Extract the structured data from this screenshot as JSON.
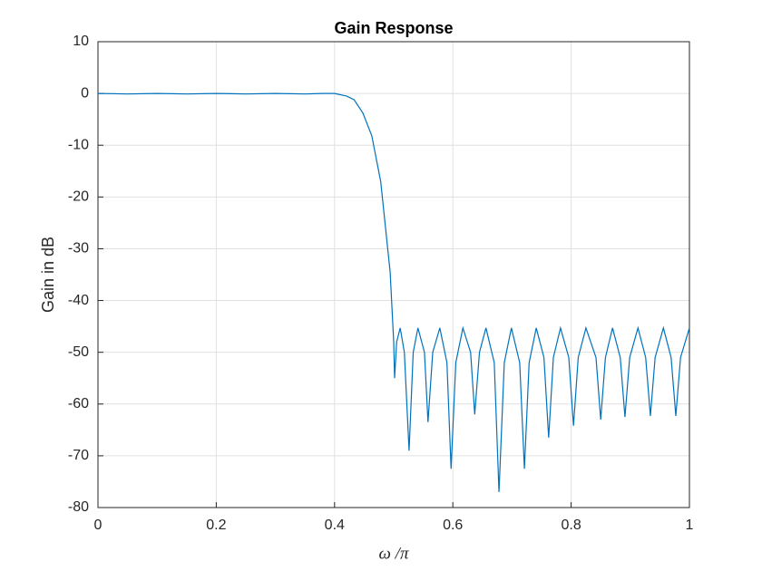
{
  "chart_data": {
    "type": "line",
    "title": "Gain Response",
    "xlabel": "ω /π",
    "ylabel": "Gain in dB",
    "x": [
      0,
      0.05,
      0.1,
      0.15,
      0.2,
      0.25,
      0.3,
      0.35,
      0.38,
      0.4,
      0.42,
      0.433,
      0.448,
      0.463,
      0.478,
      0.494,
      0.5,
      0.5015,
      0.505,
      0.511,
      0.518,
      0.526,
      0.533,
      0.541,
      0.552,
      0.558,
      0.566,
      0.578,
      0.59,
      0.597,
      0.605,
      0.617,
      0.63,
      0.637,
      0.645,
      0.656,
      0.67,
      0.678,
      0.687,
      0.699,
      0.713,
      0.721,
      0.729,
      0.741,
      0.754,
      0.762,
      0.77,
      0.782,
      0.796,
      0.804,
      0.812,
      0.825,
      0.842,
      0.85,
      0.858,
      0.87,
      0.883,
      0.891,
      0.899,
      0.913,
      0.926,
      0.934,
      0.942,
      0.956,
      0.969,
      0.977,
      0.985,
      1
    ],
    "series": [
      {
        "name": "Gain",
        "color": "#0072bd",
        "values": [
          0,
          -0.1,
          0,
          -0.1,
          0,
          -0.1,
          0,
          -0.1,
          0,
          0,
          -0.5,
          -1.2,
          -3.8,
          -8.2,
          -17,
          -34.5,
          -48,
          -55,
          -48,
          -45.3,
          -50,
          -69,
          -50,
          -45.3,
          -50,
          -63.5,
          -50,
          -45.3,
          -52,
          -72.5,
          -52,
          -45.3,
          -50,
          -62,
          -50,
          -45.3,
          -52,
          -77,
          -52,
          -45.3,
          -52,
          -72.5,
          -52,
          -45.3,
          -51,
          -66.5,
          -51,
          -45.3,
          -51,
          -64.2,
          -51,
          -45.3,
          -51,
          -63,
          -51,
          -45.3,
          -51,
          -62.5,
          -51,
          -45.3,
          -51,
          -62.3,
          -51,
          -45.3,
          -51,
          -62.3,
          -51,
          -45.3
        ]
      }
    ],
    "xlim": [
      0,
      1
    ],
    "ylim": [
      -80,
      10
    ],
    "xticks": [
      0,
      0.2,
      0.4,
      0.6,
      0.8,
      1
    ],
    "yticks": [
      -80,
      -70,
      -60,
      -50,
      -40,
      -30,
      -20,
      -10,
      0,
      10
    ],
    "grid": true
  }
}
